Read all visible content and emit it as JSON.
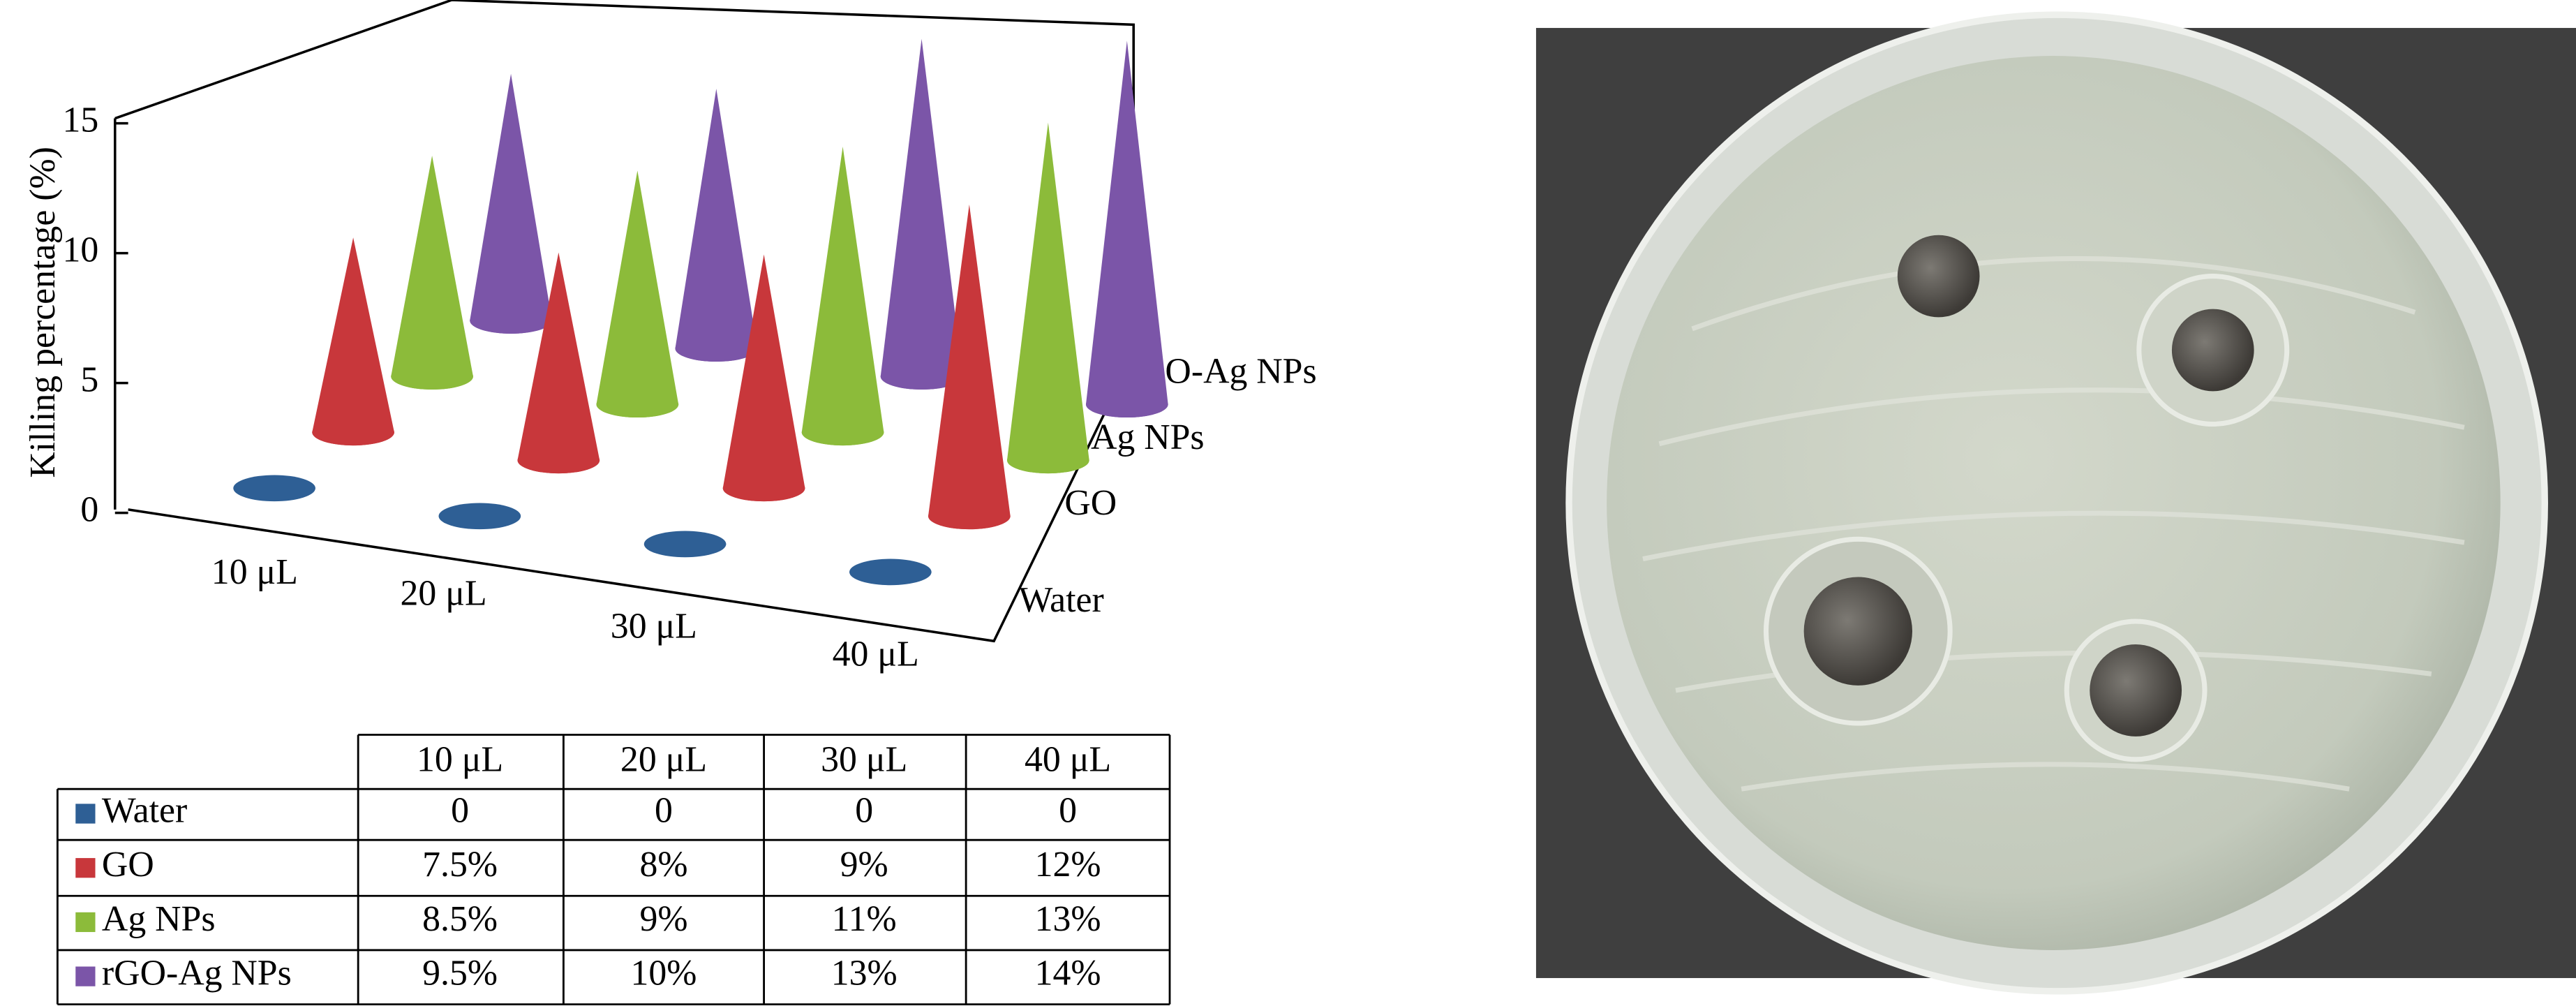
{
  "chart_data": {
    "type": "cone3d",
    "y_label": "Killing percentage (%)",
    "categories": [
      "10 μL",
      "20 μL",
      "30 μL",
      "40 μL"
    ],
    "series": [
      {
        "name": "Water",
        "color": "#2e5f95",
        "values": [
          0,
          0,
          0,
          0
        ]
      },
      {
        "name": "GO",
        "color": "#c8373b",
        "values": [
          7.5,
          8,
          9,
          12
        ],
        "value_labels": [
          "7.5%",
          "8%",
          "9%",
          "12%"
        ]
      },
      {
        "name": "Ag NPs",
        "color": "#8cbb3a",
        "values": [
          8.5,
          9,
          11,
          13
        ],
        "value_labels": [
          "8.5%",
          "9%",
          "11%",
          "13%"
        ]
      },
      {
        "name": "rGO-Ag NPs",
        "color": "#7b55a8",
        "values": [
          9.5,
          10,
          13,
          14
        ],
        "value_labels": [
          "9.5%",
          "10%",
          "13%",
          "14%"
        ]
      }
    ],
    "ylim": [
      0,
      15
    ],
    "yticks": [
      0,
      5,
      10,
      15
    ]
  }
}
